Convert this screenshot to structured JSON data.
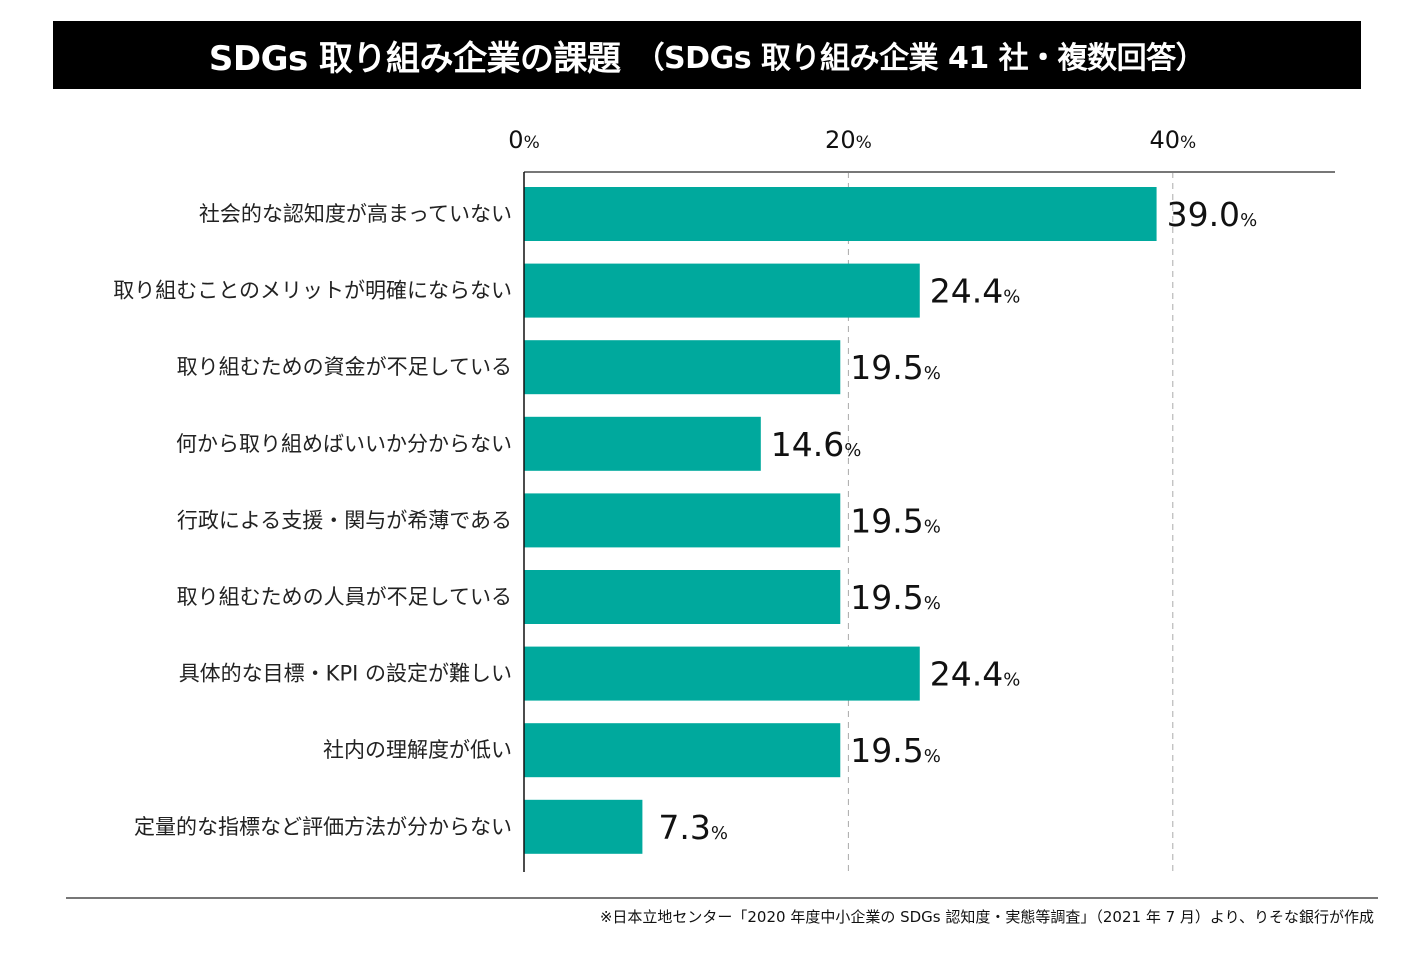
{
  "title": {
    "main": "SDGs 取り組み企業の課題",
    "sub": "（SDGs 取り組み企業 41 社・複数回答）"
  },
  "colors": {
    "bar": "#00a99d",
    "title_bg": "#000000",
    "axis": "#777777",
    "grid": "#aaaaaa"
  },
  "chart_data": {
    "type": "bar",
    "orientation": "horizontal",
    "title": "SDGs 取り組み企業の課題（SDGs 取り組み企業 41 社・複数回答）",
    "xlabel": "",
    "ylabel": "",
    "xlim": [
      0,
      50
    ],
    "x_ticks": [
      0,
      20,
      40
    ],
    "x_tick_labels": [
      "0",
      "20",
      "40"
    ],
    "tick_unit": "%",
    "grid": "vertical dashed at 20 and 40",
    "categories": [
      "社会的な認知度が高まっていない",
      "取り組むことのメリットが明確にならない",
      "取り組むための資金が不足している",
      "何から取り組めばいいか分からない",
      "行政による支援・関与が希薄である",
      "取り組むための人員が不足している",
      "具体的な目標・KPI の設定が難しい",
      "社内の理解度が低い",
      "定量的な指標など評価方法が分からない"
    ],
    "values": [
      39.0,
      24.4,
      19.5,
      14.6,
      19.5,
      19.5,
      24.4,
      19.5,
      7.3
    ],
    "value_labels": [
      "39.0",
      "24.4",
      "19.5",
      "14.6",
      "19.5",
      "19.5",
      "24.4",
      "19.5",
      "7.3"
    ],
    "value_unit": "%"
  },
  "footnote": "※日本立地センター「2020 年度中小企業の SDGs 認知度・実態等調査」（2021 年 7 月）より、りそな銀行が作成"
}
